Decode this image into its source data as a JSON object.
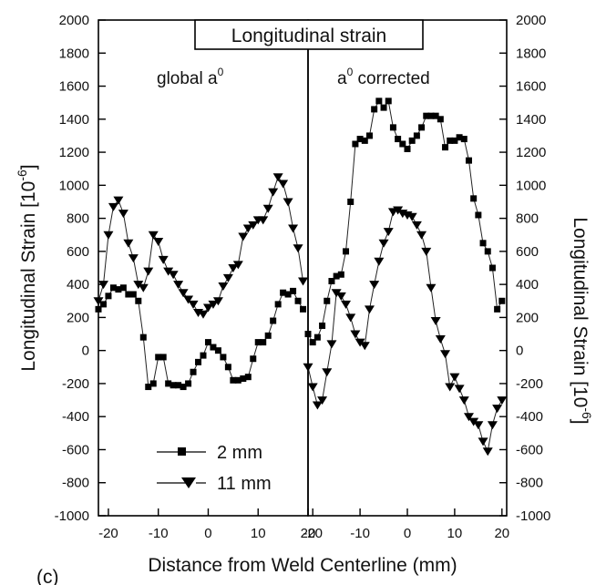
{
  "figure_label": "(c)",
  "chart_data": {
    "type": "line",
    "title": "Longitudinal strain",
    "xlabel": "Distance from Weld Centerline (mm)",
    "ylabel_left": "Longitudinal Strain [10^-6]",
    "ylabel_right": "Longitudinal Strain [10^-6]",
    "ylabel_base": "Longitudinal Strain [10",
    "ylabel_exp": "-6",
    "ylabel_close": "]",
    "ylim": [
      -1000,
      2000
    ],
    "yticks": [
      "2000",
      "1800",
      "1600",
      "1400",
      "1200",
      "1000",
      "800",
      "600",
      "400",
      "200",
      "0",
      "-200",
      "-400",
      "-600",
      "-800",
      "-1000"
    ],
    "ytick_values": [
      2000,
      1800,
      1600,
      1400,
      1200,
      1000,
      800,
      600,
      400,
      200,
      0,
      -200,
      -400,
      -600,
      -800,
      -1000
    ],
    "grid": false,
    "legend_position": "bottom-left",
    "panels": [
      {
        "label": "global a",
        "label_sup": "0",
        "xlim": [
          -22,
          20
        ],
        "xticks": [
          "-20",
          "-10",
          "0",
          "10",
          "20"
        ],
        "xtick_values": [
          -20,
          -10,
          0,
          10,
          20
        ],
        "series": [
          {
            "name": "2 mm",
            "marker": "square",
            "x": [
              -22,
              -21,
              -20,
              -19,
              -18,
              -17,
              -16,
              -15,
              -14,
              -13,
              -12,
              -11,
              -10,
              -9,
              -8,
              -7,
              -6,
              -5,
              -4,
              -3,
              -2,
              -1,
              0,
              1,
              2,
              3,
              4,
              5,
              6,
              7,
              8,
              9,
              10,
              11,
              12,
              13,
              14,
              15,
              16,
              17,
              18,
              19
            ],
            "y": [
              250,
              280,
              330,
              380,
              370,
              380,
              340,
              340,
              300,
              80,
              -220,
              -200,
              -40,
              -40,
              -200,
              -210,
              -210,
              -220,
              -200,
              -130,
              -70,
              -30,
              50,
              20,
              0,
              -40,
              -100,
              -180,
              -180,
              -170,
              -160,
              -50,
              50,
              50,
              90,
              180,
              280,
              350,
              340,
              360,
              300,
              250
            ]
          },
          {
            "name": "11 mm",
            "marker": "triangle-down",
            "x": [
              -22,
              -21,
              -20,
              -19,
              -18,
              -17,
              -16,
              -15,
              -14,
              -13,
              -12,
              -11,
              -10,
              -9,
              -8,
              -7,
              -6,
              -5,
              -4,
              -3,
              -2,
              -1,
              0,
              1,
              2,
              3,
              4,
              5,
              6,
              7,
              8,
              9,
              10,
              11,
              12,
              13,
              14,
              15,
              16,
              17,
              18,
              19
            ],
            "y": [
              300,
              400,
              700,
              870,
              910,
              830,
              650,
              560,
              400,
              380,
              480,
              700,
              660,
              550,
              480,
              460,
              400,
              350,
              310,
              280,
              230,
              220,
              260,
              280,
              300,
              390,
              440,
              500,
              520,
              690,
              740,
              760,
              790,
              790,
              860,
              960,
              1050,
              1010,
              900,
              740,
              620,
              420
            ]
          }
        ]
      },
      {
        "label": "a",
        "label_sup": "0",
        "label_suffix": " corrected",
        "xlim": [
          -21,
          21
        ],
        "xticks": [
          "-20",
          "-10",
          "0",
          "10",
          "20"
        ],
        "xtick_values": [
          -20,
          -10,
          0,
          10,
          20
        ],
        "series": [
          {
            "name": "2 mm",
            "marker": "square",
            "x": [
              -21,
              -20,
              -19,
              -18,
              -17,
              -16,
              -15,
              -14,
              -13,
              -12,
              -11,
              -10,
              -9,
              -8,
              -7,
              -6,
              -5,
              -4,
              -3,
              -2,
              -1,
              0,
              1,
              2,
              3,
              4,
              5,
              6,
              7,
              8,
              9,
              10,
              11,
              12,
              13,
              14,
              15,
              16,
              17,
              18,
              19,
              20
            ],
            "y": [
              100,
              50,
              80,
              150,
              300,
              420,
              450,
              460,
              600,
              900,
              1250,
              1280,
              1270,
              1300,
              1460,
              1510,
              1470,
              1510,
              1350,
              1280,
              1250,
              1220,
              1270,
              1300,
              1350,
              1420,
              1420,
              1420,
              1400,
              1230,
              1270,
              1270,
              1290,
              1280,
              1150,
              920,
              820,
              650,
              600,
              500,
              250,
              300
            ]
          },
          {
            "name": "11 mm",
            "marker": "triangle-down",
            "x": [
              -21,
              -20,
              -19,
              -18,
              -17,
              -16,
              -15,
              -14,
              -13,
              -12,
              -11,
              -10,
              -9,
              -8,
              -7,
              -6,
              -5,
              -4,
              -3,
              -2,
              -1,
              0,
              1,
              2,
              3,
              4,
              5,
              6,
              7,
              8,
              9,
              10,
              11,
              12,
              13,
              14,
              15,
              16,
              17,
              18,
              19,
              20
            ],
            "y": [
              -100,
              -220,
              -330,
              -300,
              -130,
              40,
              350,
              330,
              280,
              200,
              100,
              50,
              30,
              250,
              400,
              540,
              650,
              720,
              840,
              850,
              830,
              820,
              810,
              760,
              700,
              600,
              380,
              180,
              70,
              -20,
              -220,
              -160,
              -230,
              -300,
              -400,
              -430,
              -450,
              -550,
              -610,
              -450,
              -350,
              -300
            ]
          }
        ]
      }
    ]
  }
}
